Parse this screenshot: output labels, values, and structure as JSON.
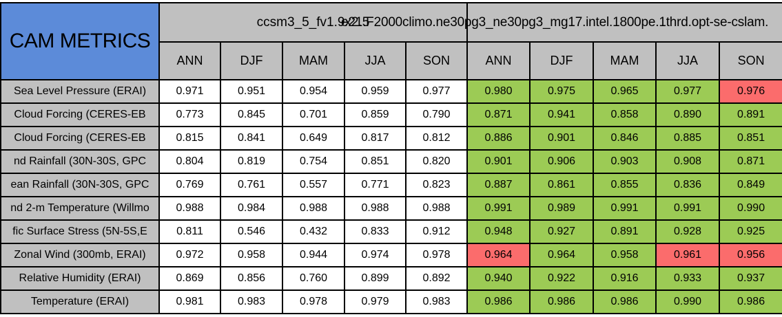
{
  "title": "CAM METRICS",
  "header": {
    "run_left": "ccsm3_5_fv1.9x2.5",
    "run_right": "e21.F2000climo.ne30pg3_ne30pg3_mg17.intel.1800pe.1thrd.opt-se-cslam.",
    "seasons": [
      "ANN",
      "DJF",
      "MAM",
      "JJA",
      "SON"
    ]
  },
  "colors": {
    "title_cell_blue": "#5C8BD9",
    "header_gray": "#C0C0C0",
    "cell_green": "#9CCB55",
    "cell_red": "#FB6C6C",
    "cell_white": "#FFFFFF",
    "border_black": "#000000"
  },
  "chart_data": {
    "type": "table",
    "title": "CAM METRICS",
    "column_groups": [
      "ccsm3_5_fv1.9x2.5",
      "e21.F2000climo.ne30pg3_ne30pg3_mg17.intel.1800pe.1thrd.opt-se-cslam."
    ],
    "columns": [
      "ANN",
      "DJF",
      "MAM",
      "JJA",
      "SON",
      "ANN",
      "DJF",
      "MAM",
      "JJA",
      "SON"
    ],
    "rows": [
      {
        "label": "Sea Level Pressure (ERAI)",
        "left": [
          "0.971",
          "0.951",
          "0.954",
          "0.959",
          "0.977"
        ],
        "right": [
          "0.980",
          "0.975",
          "0.965",
          "0.977",
          "0.976"
        ],
        "right_status": [
          "green",
          "green",
          "green",
          "green",
          "red"
        ]
      },
      {
        "label": "Cloud Forcing (CERES-EB",
        "left": [
          "0.773",
          "0.845",
          "0.701",
          "0.859",
          "0.790"
        ],
        "right": [
          "0.871",
          "0.941",
          "0.858",
          "0.890",
          "0.891"
        ],
        "right_status": [
          "green",
          "green",
          "green",
          "green",
          "green"
        ]
      },
      {
        "label": "Cloud Forcing (CERES-EB",
        "left": [
          "0.815",
          "0.841",
          "0.649",
          "0.817",
          "0.812"
        ],
        "right": [
          "0.886",
          "0.901",
          "0.846",
          "0.885",
          "0.851"
        ],
        "right_status": [
          "green",
          "green",
          "green",
          "green",
          "green"
        ]
      },
      {
        "label": "nd Rainfall (30N-30S, GPC",
        "left": [
          "0.804",
          "0.819",
          "0.754",
          "0.851",
          "0.820"
        ],
        "right": [
          "0.901",
          "0.906",
          "0.903",
          "0.908",
          "0.871"
        ],
        "right_status": [
          "green",
          "green",
          "green",
          "green",
          "green"
        ]
      },
      {
        "label": "ean Rainfall (30N-30S, GPC",
        "left": [
          "0.769",
          "0.761",
          "0.557",
          "0.771",
          "0.823"
        ],
        "right": [
          "0.887",
          "0.861",
          "0.855",
          "0.836",
          "0.849"
        ],
        "right_status": [
          "green",
          "green",
          "green",
          "green",
          "green"
        ]
      },
      {
        "label": "nd 2-m Temperature (Willmo",
        "left": [
          "0.988",
          "0.984",
          "0.988",
          "0.988",
          "0.988"
        ],
        "right": [
          "0.991",
          "0.989",
          "0.991",
          "0.991",
          "0.990"
        ],
        "right_status": [
          "green",
          "green",
          "green",
          "green",
          "green"
        ]
      },
      {
        "label": "fic Surface Stress (5N-5S,E",
        "left": [
          "0.811",
          "0.546",
          "0.432",
          "0.833",
          "0.912"
        ],
        "right": [
          "0.948",
          "0.927",
          "0.891",
          "0.928",
          "0.925"
        ],
        "right_status": [
          "green",
          "green",
          "green",
          "green",
          "green"
        ]
      },
      {
        "label": "Zonal Wind (300mb, ERAI)",
        "left": [
          "0.972",
          "0.958",
          "0.944",
          "0.974",
          "0.978"
        ],
        "right": [
          "0.964",
          "0.964",
          "0.958",
          "0.961",
          "0.956"
        ],
        "right_status": [
          "red",
          "green",
          "green",
          "red",
          "red"
        ]
      },
      {
        "label": "Relative Humidity (ERAI)",
        "left": [
          "0.869",
          "0.856",
          "0.760",
          "0.899",
          "0.892"
        ],
        "right": [
          "0.940",
          "0.922",
          "0.916",
          "0.933",
          "0.937"
        ],
        "right_status": [
          "green",
          "green",
          "green",
          "green",
          "green"
        ]
      },
      {
        "label": "Temperature (ERAI)",
        "left": [
          "0.981",
          "0.983",
          "0.978",
          "0.979",
          "0.983"
        ],
        "right": [
          "0.986",
          "0.986",
          "0.986",
          "0.990",
          "0.986"
        ],
        "right_status": [
          "green",
          "green",
          "green",
          "green",
          "green"
        ]
      }
    ]
  }
}
